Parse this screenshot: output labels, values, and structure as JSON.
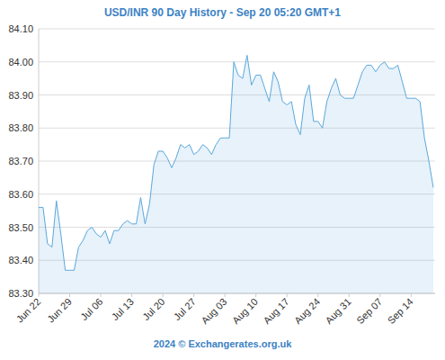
{
  "chart_data": {
    "type": "area",
    "title": "USD/INR 90 Day History - Sep 20 05:20 GMT+1",
    "source": "2024 © Exchangerates.org.uk",
    "categories": [
      "Jun 22",
      null,
      null,
      null,
      null,
      null,
      null,
      "Jun 29",
      null,
      null,
      null,
      null,
      null,
      null,
      "Jul 06",
      null,
      null,
      null,
      null,
      null,
      null,
      "Jul 13",
      null,
      null,
      null,
      null,
      null,
      null,
      "Jul 20",
      null,
      null,
      null,
      null,
      null,
      null,
      "Jul 27",
      null,
      null,
      null,
      null,
      null,
      null,
      "Aug 03",
      null,
      null,
      null,
      null,
      null,
      null,
      "Aug 10",
      null,
      null,
      null,
      null,
      null,
      null,
      "Aug 17",
      null,
      null,
      null,
      null,
      null,
      null,
      "Aug 24",
      null,
      null,
      null,
      null,
      null,
      null,
      "Aug 31",
      null,
      null,
      null,
      null,
      null,
      null,
      "Sep 07",
      null,
      null,
      null,
      null,
      null,
      null,
      "Sep 14",
      null,
      null,
      null,
      null,
      null
    ],
    "values": [
      83.56,
      83.56,
      83.45,
      83.44,
      83.58,
      83.48,
      83.37,
      83.37,
      83.37,
      83.44,
      83.46,
      83.49,
      83.5,
      83.48,
      83.47,
      83.49,
      83.45,
      83.49,
      83.49,
      83.51,
      83.52,
      83.51,
      83.51,
      83.59,
      83.51,
      83.57,
      83.69,
      83.73,
      83.73,
      83.71,
      83.68,
      83.71,
      83.75,
      83.74,
      83.75,
      83.72,
      83.73,
      83.75,
      83.74,
      83.72,
      83.75,
      83.77,
      83.77,
      83.77,
      84.0,
      83.96,
      83.95,
      84.02,
      83.93,
      83.96,
      83.96,
      83.92,
      83.88,
      83.97,
      83.94,
      83.88,
      83.87,
      83.88,
      83.81,
      83.78,
      83.89,
      83.93,
      83.82,
      83.82,
      83.8,
      83.88,
      83.92,
      83.95,
      83.9,
      83.89,
      83.89,
      83.89,
      83.93,
      83.97,
      83.99,
      83.99,
      83.97,
      83.99,
      84.0,
      83.98,
      83.98,
      83.99,
      83.94,
      83.89,
      83.89,
      83.89,
      83.88,
      83.77,
      83.7,
      83.62
    ],
    "color": "#5ba8dc",
    "ylim": [
      83.3,
      84.1
    ],
    "yticks": [
      {
        "value": 83.3,
        "label": "83.30"
      },
      {
        "value": 83.4,
        "label": "83.40"
      },
      {
        "value": 83.5,
        "label": "83.50"
      },
      {
        "value": 83.6,
        "label": "83.60"
      },
      {
        "value": 83.7,
        "label": "83.70"
      },
      {
        "value": 83.8,
        "label": "83.80"
      },
      {
        "value": 83.9,
        "label": "83.90"
      },
      {
        "value": 84.0,
        "label": "84.00"
      },
      {
        "value": 84.1,
        "label": "84.10"
      }
    ],
    "grid": true
  }
}
